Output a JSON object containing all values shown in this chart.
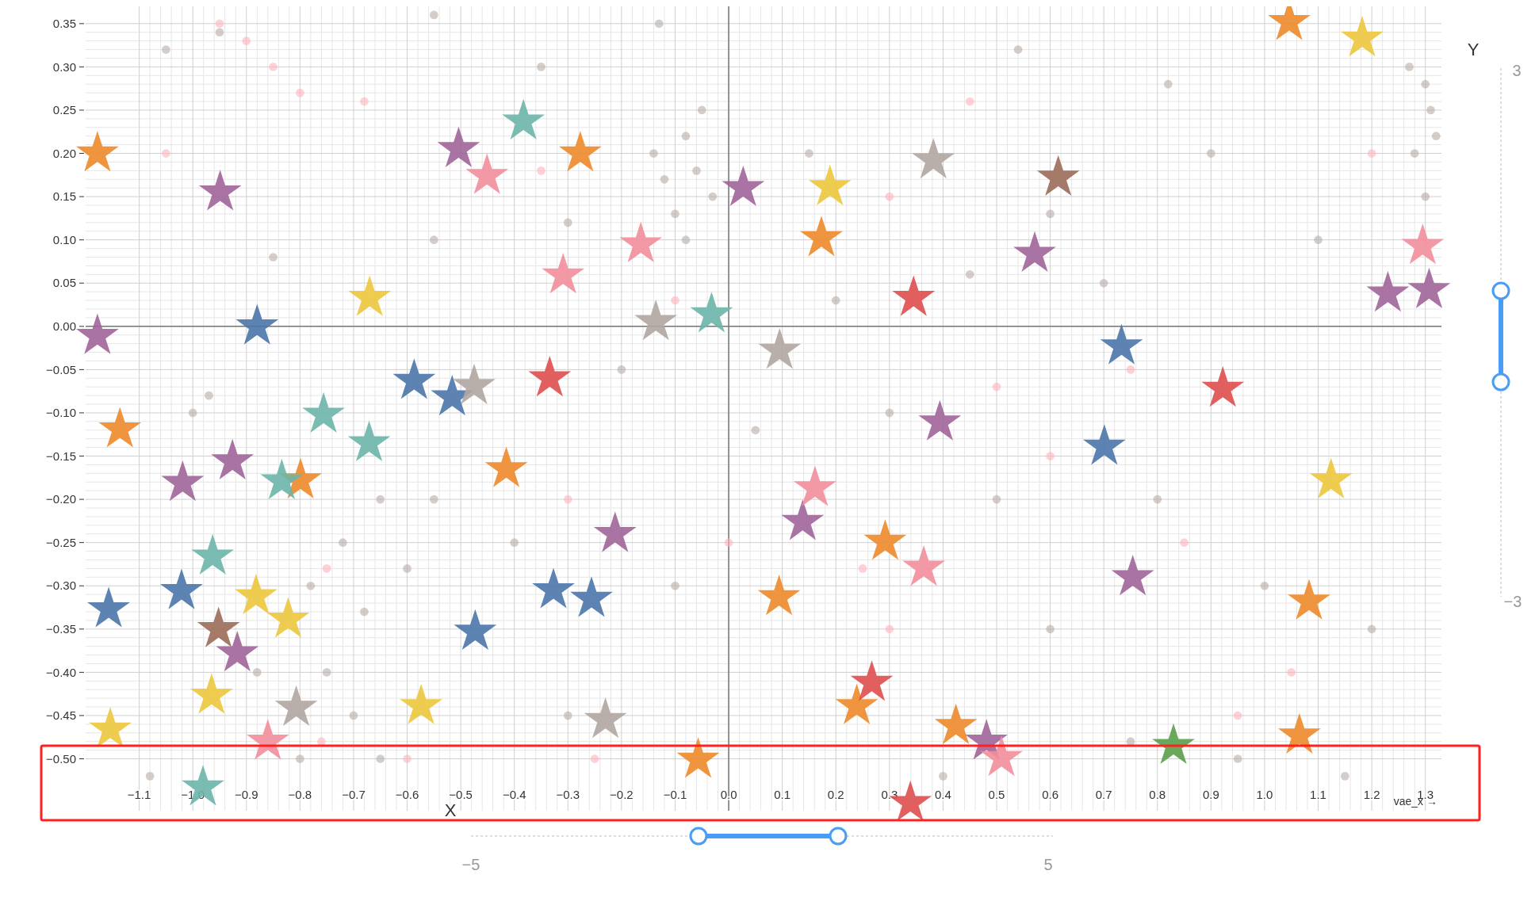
{
  "chart_data": {
    "type": "scatter",
    "xlabel": "vae_x →",
    "xlim": [
      -1.2,
      1.33
    ],
    "ylim": [
      -0.56,
      0.37
    ],
    "xticks": [
      {
        "value": -1.1,
        "label": "−1.1"
      },
      {
        "value": -1.0,
        "label": "−1.0"
      },
      {
        "value": -0.9,
        "label": "−0.9"
      },
      {
        "value": -0.8,
        "label": "−0.8"
      },
      {
        "value": -0.7,
        "label": "−0.7"
      },
      {
        "value": -0.6,
        "label": "−0.6"
      },
      {
        "value": -0.5,
        "label": "−0.5"
      },
      {
        "value": -0.4,
        "label": "−0.4"
      },
      {
        "value": -0.3,
        "label": "−0.3"
      },
      {
        "value": -0.2,
        "label": "−0.2"
      },
      {
        "value": -0.1,
        "label": "−0.1"
      },
      {
        "value": 0,
        "label": "0.0"
      },
      {
        "value": 0.1,
        "label": "0.1"
      },
      {
        "value": 0.2,
        "label": "0.2"
      },
      {
        "value": 0.3,
        "label": "0.3"
      },
      {
        "value": 0.4,
        "label": "0.4"
      },
      {
        "value": 0.5,
        "label": "0.5"
      },
      {
        "value": 0.6,
        "label": "0.6"
      },
      {
        "value": 0.7,
        "label": "0.7"
      },
      {
        "value": 0.8,
        "label": "0.8"
      },
      {
        "value": 0.9,
        "label": "0.9"
      },
      {
        "value": 1.0,
        "label": "1.0"
      },
      {
        "value": 1.1,
        "label": "1.1"
      },
      {
        "value": 1.2,
        "label": "1.2"
      },
      {
        "value": 1.3,
        "label": "1.3"
      }
    ],
    "yticks": [
      {
        "value": 0.35,
        "label": "0.35"
      },
      {
        "value": 0.3,
        "label": "0.30"
      },
      {
        "value": 0.25,
        "label": "0.25"
      },
      {
        "value": 0.2,
        "label": "0.20"
      },
      {
        "value": 0.15,
        "label": "0.15"
      },
      {
        "value": 0.1,
        "label": "0.10"
      },
      {
        "value": 0.05,
        "label": "0.05"
      },
      {
        "value": 0,
        "label": "0.00"
      },
      {
        "value": -0.05,
        "label": "−0.05"
      },
      {
        "value": -0.1,
        "label": "−0.10"
      },
      {
        "value": -0.15,
        "label": "−0.15"
      },
      {
        "value": -0.2,
        "label": "−0.20"
      },
      {
        "value": -0.25,
        "label": "−0.25"
      },
      {
        "value": -0.3,
        "label": "−0.30"
      },
      {
        "value": -0.35,
        "label": "−0.35"
      },
      {
        "value": -0.4,
        "label": "−0.40"
      },
      {
        "value": -0.45,
        "label": "−0.45"
      },
      {
        "value": -0.5,
        "label": "−0.50"
      }
    ],
    "grid": true,
    "annotations": [
      "X",
      "Y",
      "3",
      "−3",
      "−5",
      "5"
    ],
    "series": [
      {
        "color": "#b8aca6",
        "marker": "circle",
        "x": [
          -1.05,
          -0.95,
          -0.55,
          -0.35,
          -0.13,
          -0.14,
          -0.12,
          -0.08,
          -0.06,
          -0.1,
          -0.05,
          -0.03,
          -0.08,
          0.54,
          0.82,
          1.3,
          1.31,
          1.32,
          1.28,
          1.3,
          1.27,
          0.6,
          0.9,
          -0.85,
          -0.55,
          -0.3,
          0.2,
          0.45,
          0.7,
          -0.97,
          -0.65,
          -0.72,
          -0.78,
          -0.68,
          -0.75,
          -0.7,
          -0.8,
          -0.65,
          -0.88,
          -0.6,
          -0.55,
          -0.4,
          -0.1,
          0.05,
          0.3,
          0.5,
          0.8,
          1.0,
          1.2,
          0.95,
          0.75,
          0.4,
          -0.3,
          -1.08,
          1.15,
          -1.0,
          0.15,
          1.1,
          -0.2,
          0.6
        ],
        "values": [
          0.32,
          0.34,
          0.36,
          0.3,
          0.35,
          0.2,
          0.17,
          0.22,
          0.18,
          0.13,
          0.25,
          0.15,
          0.1,
          0.32,
          0.28,
          0.28,
          0.25,
          0.22,
          0.2,
          0.15,
          0.3,
          0.13,
          0.2,
          0.08,
          0.1,
          0.12,
          0.03,
          0.06,
          0.05,
          -0.08,
          -0.2,
          -0.25,
          -0.3,
          -0.33,
          -0.4,
          -0.45,
          -0.5,
          -0.5,
          -0.4,
          -0.28,
          -0.2,
          -0.25,
          -0.3,
          -0.12,
          -0.1,
          -0.2,
          -0.2,
          -0.3,
          -0.35,
          -0.5,
          -0.48,
          -0.52,
          -0.45,
          -0.52,
          -0.52,
          -0.1,
          0.2,
          0.1,
          -0.05,
          -0.35
        ]
      },
      {
        "color": "#ffb3bd",
        "marker": "circle",
        "x": [
          -0.95,
          -0.9,
          -0.85,
          -0.8,
          -0.68,
          -0.35,
          -0.1,
          0.3,
          0.45,
          0.75,
          0.5,
          0.6,
          0.85,
          0.3,
          0.25,
          -0.3,
          -0.75,
          -0.76,
          -0.6,
          -0.25,
          1.05,
          0.95,
          -1.05,
          0.0,
          1.2
        ],
        "values": [
          0.35,
          0.33,
          0.3,
          0.27,
          0.26,
          0.18,
          0.03,
          0.15,
          0.26,
          -0.05,
          -0.07,
          -0.15,
          -0.25,
          -0.35,
          -0.28,
          -0.2,
          -0.28,
          -0.48,
          -0.5,
          -0.5,
          -0.4,
          -0.45,
          0.2,
          -0.25,
          0.2
        ]
      },
      {
        "color": "#ee8a2a",
        "marker": "star",
        "x": [
          -1.178,
          -1.136,
          -0.277,
          -0.799,
          -0.415,
          0.173,
          0.292,
          0.094,
          0.239,
          0.424,
          -0.057,
          1.046,
          1.083,
          1.065
        ],
        "values": [
          0.2,
          -0.119,
          0.2,
          -0.178,
          -0.165,
          0.102,
          -0.249,
          -0.313,
          -0.439,
          -0.462,
          -0.501,
          0.352,
          -0.318,
          -0.473
        ]
      },
      {
        "color": "#a0659a",
        "marker": "star",
        "x": [
          -1.178,
          -0.949,
          -0.504,
          0.027,
          0.571,
          -1.019,
          -0.926,
          -0.917,
          -0.212,
          0.138,
          0.394,
          0.754,
          0.481,
          1.23,
          1.307
        ],
        "values": [
          -0.011,
          0.155,
          0.205,
          0.16,
          0.084,
          -0.181,
          -0.156,
          -0.378,
          -0.24,
          -0.226,
          -0.111,
          -0.29,
          -0.48,
          0.038,
          0.042
        ]
      },
      {
        "color": "#f28e9b",
        "marker": "star",
        "x": [
          -0.451,
          -0.164,
          -0.309,
          0.161,
          0.364,
          -0.86,
          0.509,
          1.295
        ],
        "values": [
          0.174,
          0.095,
          0.059,
          -0.187,
          -0.279,
          -0.48,
          -0.499,
          0.093
        ]
      },
      {
        "color": "#6cb5aa",
        "marker": "star",
        "x": [
          -0.383,
          -0.032,
          -0.756,
          -0.671,
          -0.834,
          -0.963,
          -0.981
        ],
        "values": [
          0.237,
          0.014,
          -0.102,
          -0.135,
          -0.179,
          -0.266,
          -0.533
        ]
      },
      {
        "color": "#4a76a8",
        "marker": "star",
        "x": [
          -0.88,
          -0.587,
          -0.516,
          0.733,
          0.701,
          -1.021,
          -1.157,
          -0.327,
          -0.256,
          -0.473
        ],
        "values": [
          0.0,
          -0.063,
          -0.082,
          -0.023,
          -0.139,
          -0.306,
          -0.327,
          -0.305,
          -0.315,
          -0.353
        ]
      },
      {
        "color": "#de4e4e",
        "marker": "star",
        "x": [
          0.345,
          -0.334,
          0.922,
          0.267,
          0.339
        ],
        "values": [
          0.033,
          -0.06,
          -0.072,
          -0.412,
          -0.551
        ]
      },
      {
        "color": "#ecc63c",
        "marker": "star",
        "x": [
          -0.67,
          0.189,
          1.182,
          1.124,
          -0.882,
          -0.822,
          -0.965,
          -0.574,
          -1.154
        ],
        "values": [
          0.033,
          0.161,
          0.333,
          -0.178,
          -0.312,
          -0.339,
          -0.427,
          -0.439,
          -0.466
        ]
      },
      {
        "color": "#b0a6a2",
        "marker": "star",
        "x": [
          0.382,
          -0.136,
          0.095,
          -0.475,
          -0.807,
          -0.23
        ],
        "values": [
          0.192,
          0.005,
          -0.028,
          -0.069,
          -0.441,
          -0.455
        ]
      },
      {
        "color": "#9c6b58",
        "marker": "star",
        "x": [
          0.615,
          -0.952
        ],
        "values": [
          0.172,
          -0.35
        ]
      },
      {
        "color": "#5a9e4a",
        "marker": "star",
        "x": [
          0.83
        ],
        "values": [
          -0.485
        ]
      }
    ]
  }
}
